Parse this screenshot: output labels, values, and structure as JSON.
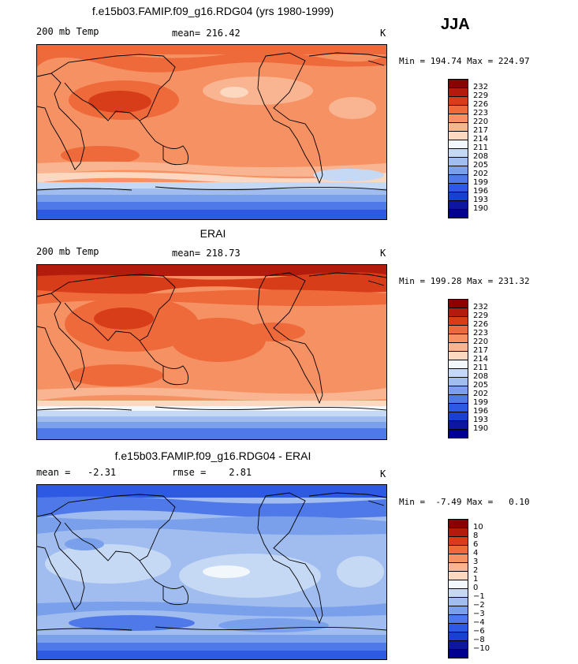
{
  "season": "JJA",
  "panels": [
    {
      "title": "f.e15b03.FAMIP.f09_g16.RDG04 (yrs 1980-1999)",
      "left_label": "200 mb Temp",
      "center_label": "mean= 216.42",
      "units": "K",
      "minmax": "Min = 194.74 Max = 224.97",
      "palette": "temp"
    },
    {
      "title": "ERAI",
      "left_label": "200 mb Temp",
      "center_label": "mean= 218.73",
      "units": "K",
      "minmax": "Min = 199.28 Max = 231.32",
      "palette": "temp"
    },
    {
      "title": "f.e15b03.FAMIP.f09_g16.RDG04 - ERAI",
      "left_label": "mean =   -2.31",
      "center_label": "rmse =    2.81",
      "units": "K",
      "minmax": "Min =  -7.49 Max =   0.10",
      "palette": "diff"
    }
  ],
  "colorbars": {
    "temp": {
      "labels": [
        "232",
        "229",
        "226",
        "223",
        "220",
        "217",
        "214",
        "211",
        "208",
        "205",
        "202",
        "199",
        "196",
        "193",
        "190"
      ],
      "colors": [
        "#8b0000",
        "#b31c0d",
        "#d83d1a",
        "#ef6a3a",
        "#f69163",
        "#f9b591",
        "#fcd8c0",
        "#f2f7fc",
        "#c5d9f4",
        "#a1bdef",
        "#7aa0eb",
        "#4f79e8",
        "#2e5ae3",
        "#1b3fd1",
        "#0c16a0",
        "#000090"
      ]
    },
    "diff": {
      "labels": [
        "10",
        "8",
        "6",
        "4",
        "3",
        "2",
        "1",
        "0",
        "−1",
        "−2",
        "−3",
        "−4",
        "−6",
        "−8",
        "−10"
      ],
      "colors": [
        "#8b0000",
        "#b31c0d",
        "#d83d1a",
        "#ef6a3a",
        "#f69163",
        "#f9b591",
        "#fcd8c0",
        "#f2f7fc",
        "#c5d9f4",
        "#a1bdef",
        "#7aa0eb",
        "#4f79e8",
        "#2e5ae3",
        "#1b3fd1",
        "#0c16a0",
        "#000090"
      ]
    }
  }
}
